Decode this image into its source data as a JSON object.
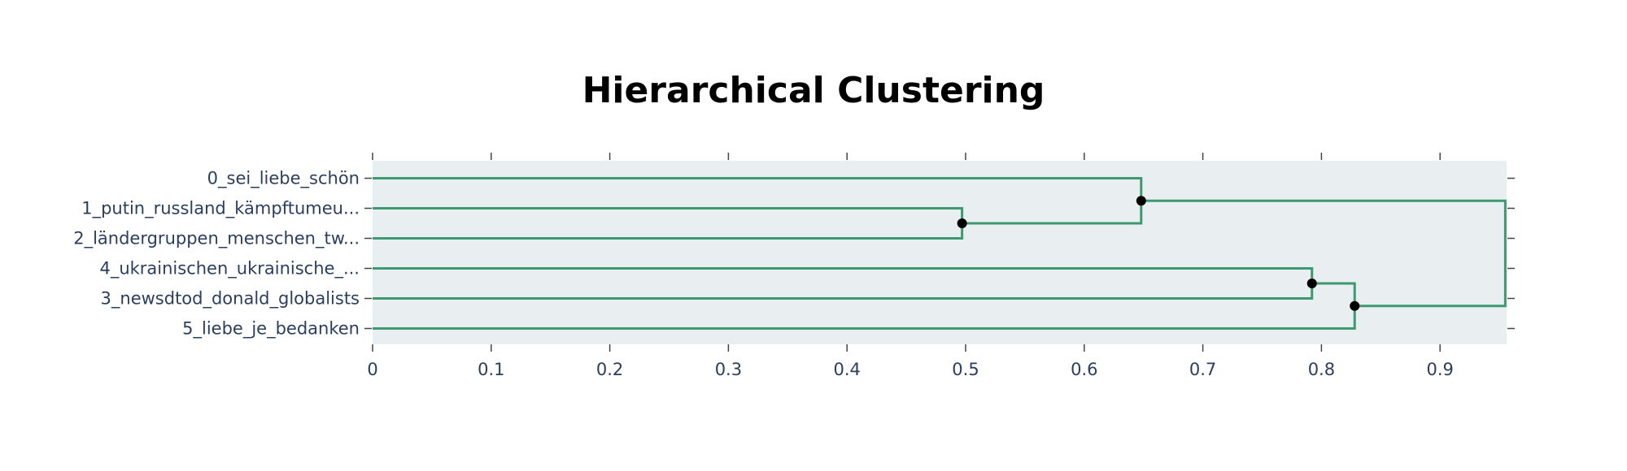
{
  "chart_data": {
    "type": "dendrogram",
    "title": "Hierarchical Clustering",
    "xlabel": "",
    "ylabel": "",
    "xlim": [
      0,
      0.958
    ],
    "x_ticks": [
      "0",
      "0.1",
      "0.2",
      "0.3",
      "0.4",
      "0.5",
      "0.6",
      "0.7",
      "0.8",
      "0.9"
    ],
    "x_tick_values": [
      0,
      0.1,
      0.2,
      0.3,
      0.4,
      0.5,
      0.6,
      0.7,
      0.8,
      0.9
    ],
    "leaves": [
      "0_sei_liebe_schön",
      "1_putin_russland_kämpftumeu...",
      "2_ländergruppen_menschen_tw...",
      "4_ukrainischen_ukrainische_...",
      "3_newsdtod_donald_globalists",
      "5_liebe_je_bedanken"
    ],
    "merges": [
      {
        "left": "1_putin_russland_kämpftumeu...",
        "right": "2_ländergruppen_menschen_tw...",
        "distance": 0.497
      },
      {
        "left": "0_sei_liebe_schön",
        "right": "cluster(1,2)",
        "distance": 0.648
      },
      {
        "left": "4_ukrainischen_ukrainische_...",
        "right": "3_newsdtod_donald_globalists",
        "distance": 0.792
      },
      {
        "left": "cluster(4,3)",
        "right": "5_liebe_je_bedanken",
        "distance": 0.828
      },
      {
        "left": "cluster(0,1,2)",
        "right": "cluster(4,3,5)",
        "distance": 0.955
      }
    ],
    "grid": false,
    "colors": {
      "link": "#3d9970",
      "node": "#000000",
      "plot_bg": "#e9eef1",
      "tick_text": "#2a3f5f"
    }
  }
}
